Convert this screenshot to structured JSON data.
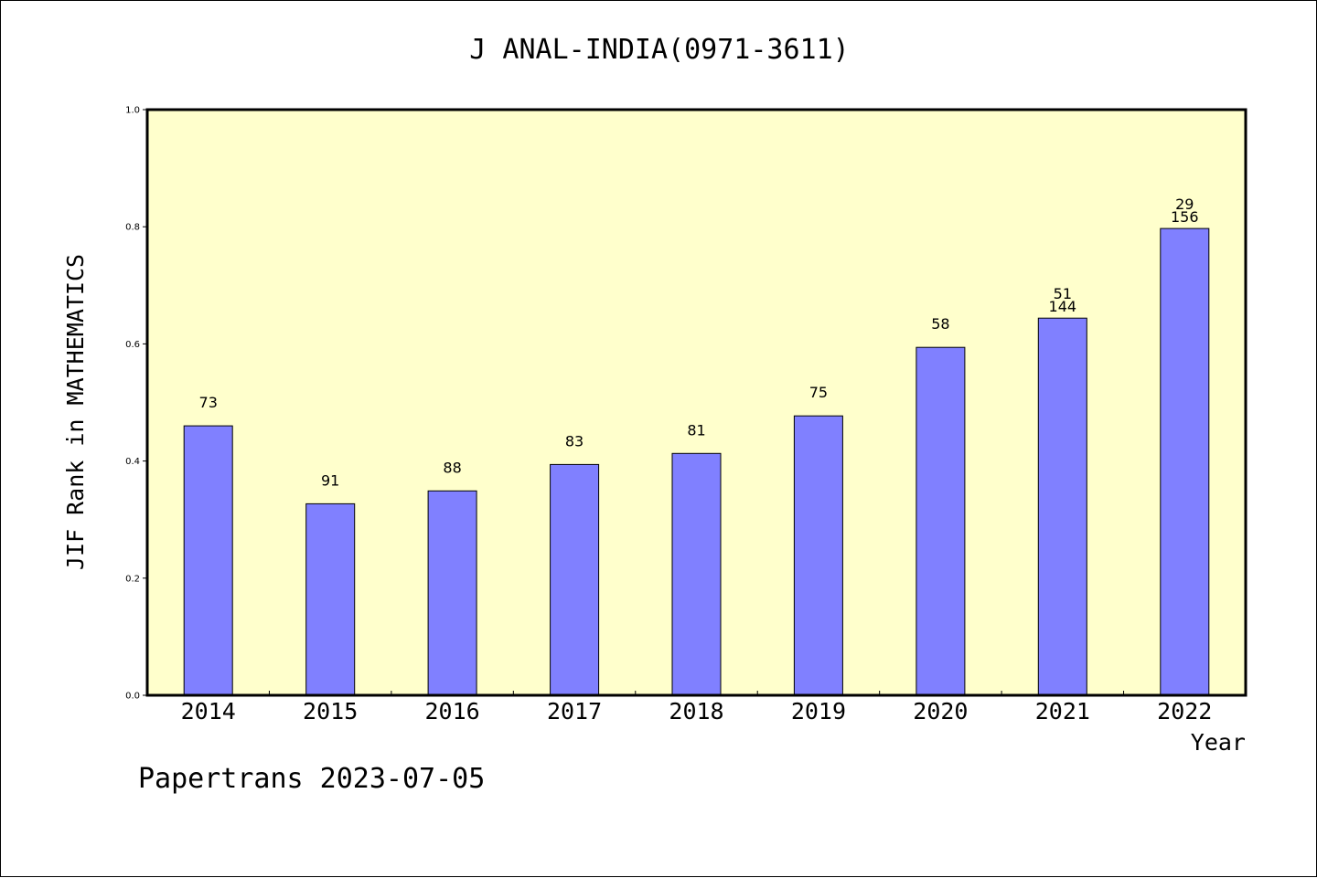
{
  "title": "J ANAL-INDIA(0971-3611)",
  "footer": "Papertrans 2023-07-05",
  "colors": {
    "plot_background": "#ffffcc",
    "bar_fill": "#8080ff",
    "axis": "#000000"
  },
  "chart_data": {
    "type": "bar",
    "title": "J ANAL-INDIA(0971-3611)",
    "xlabel": "Year",
    "ylabel": "JIF Rank in MATHEMATICS",
    "ylim": [
      0,
      1.0
    ],
    "yticks": [
      "0.0",
      "0.2",
      "0.4",
      "0.6",
      "0.8",
      "1.0"
    ],
    "categories": [
      "2014",
      "2015",
      "2016",
      "2017",
      "2018",
      "2019",
      "2020",
      "2021",
      "2022"
    ],
    "values": [
      0.46,
      0.327,
      0.349,
      0.394,
      0.413,
      0.477,
      0.594,
      0.644,
      0.797
    ],
    "rank_labels": [
      "73",
      "91",
      "88",
      "83",
      "81",
      "75",
      "58",
      "51",
      "29"
    ],
    "total_labels": [
      "",
      "",
      "",
      "",
      "",
      "",
      "",
      "144",
      "156"
    ],
    "grid": false,
    "legend": "none"
  }
}
